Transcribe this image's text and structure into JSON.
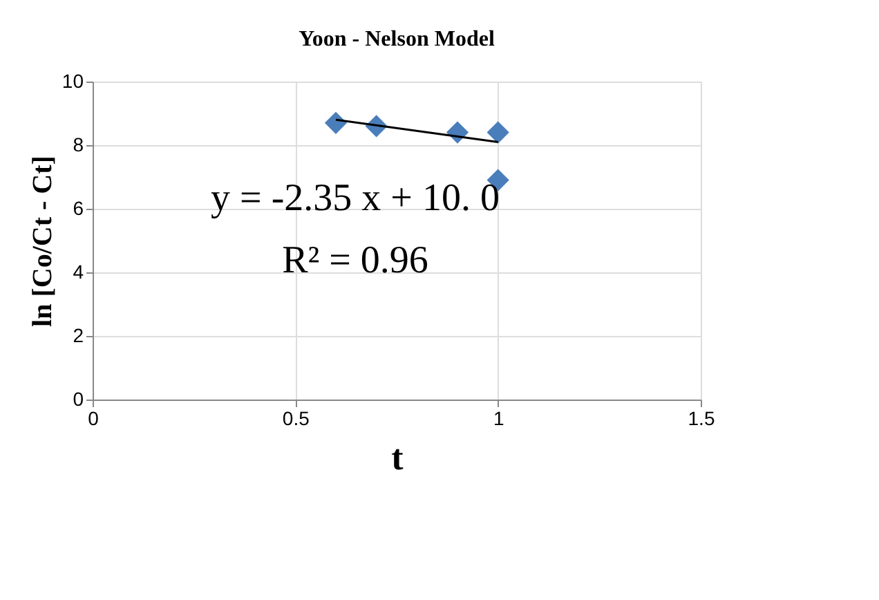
{
  "chart_data": {
    "type": "scatter",
    "title": "Yoon  - Nelson Model",
    "xlabel": "t",
    "ylabel": "ln [Co/Ct - Ct]",
    "series": [
      {
        "color": "#4a7ebb",
        "x": [
          0.6,
          0.7,
          0.9,
          1.0,
          1.0
        ],
        "values": [
          8.7,
          8.6,
          8.4,
          8.4,
          6.9
        ],
        "marker": "diamond"
      },
      {
        "type": "line",
        "color": "#000000",
        "x": [
          0.6,
          1.0
        ],
        "values": [
          8.8,
          8.1
        ],
        "marker": "none"
      }
    ],
    "annotations": [
      "y =  -2.35 x + 10. 0",
      "R² =  0.96"
    ],
    "xlim": [
      0,
      1.5
    ],
    "xticks": [
      0,
      0.5,
      1,
      1.5
    ],
    "ylim": [
      0,
      10
    ],
    "yticks": [
      0,
      2,
      4,
      6,
      8,
      10
    ],
    "grid": true
  }
}
